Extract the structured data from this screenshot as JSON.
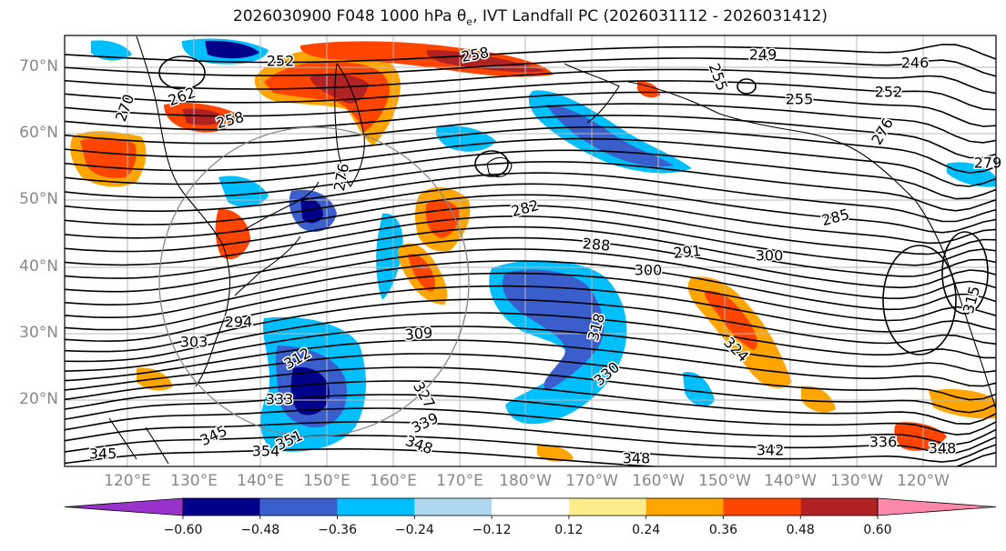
{
  "title_text": "2026030900 F048 1000 hPa θ",
  "title_sub": "e",
  "title_rest": ", IVT Landfall PC (2026031112 - 2026031412)",
  "lat_ticks": [
    "70°N",
    "60°N",
    "50°N",
    "40°N",
    "30°N",
    "20°N"
  ],
  "lon_ticks": [
    "120°E",
    "130°E",
    "140°E",
    "150°E",
    "160°E",
    "170°E",
    "180°W",
    "170°W",
    "160°W",
    "150°W",
    "140°W",
    "130°W",
    "120°W"
  ],
  "colorbar": {
    "labels": [
      "−0.60",
      "−0.48",
      "−0.36",
      "−0.24",
      "−0.12",
      "0.12",
      "0.24",
      "0.36",
      "0.48",
      "0.60"
    ],
    "colors": [
      "#9932CC",
      "#00008B",
      "#3A5FCD",
      "#00BFFF",
      "#ADD8F0",
      "#FFFFFF",
      "#FFEC8B",
      "#FFA500",
      "#FF4500",
      "#B22222",
      "#FF88AA"
    ]
  },
  "contour_labels": [
    {
      "text": "258"
    },
    {
      "text": "252"
    },
    {
      "text": "249"
    },
    {
      "text": "246"
    },
    {
      "text": "255"
    },
    {
      "text": "252"
    },
    {
      "text": "255"
    },
    {
      "text": "262"
    },
    {
      "text": "270"
    },
    {
      "text": "258"
    },
    {
      "text": "276"
    },
    {
      "text": "282"
    },
    {
      "text": "285"
    },
    {
      "text": "288"
    },
    {
      "text": "291"
    },
    {
      "text": "300"
    },
    {
      "text": "300"
    },
    {
      "text": "294"
    },
    {
      "text": "303"
    },
    {
      "text": "309"
    },
    {
      "text": "312"
    },
    {
      "text": "318"
    },
    {
      "text": "324"
    },
    {
      "text": "330"
    },
    {
      "text": "333"
    },
    {
      "text": "339"
    },
    {
      "text": "345"
    },
    {
      "text": "348"
    },
    {
      "text": "348"
    },
    {
      "text": "351"
    },
    {
      "text": "354"
    },
    {
      "text": "342"
    },
    {
      "text": "336"
    },
    {
      "text": "348"
    },
    {
      "text": "345"
    },
    {
      "text": "327"
    },
    {
      "text": "315"
    },
    {
      "text": "279"
    },
    {
      "text": "276"
    }
  ]
}
